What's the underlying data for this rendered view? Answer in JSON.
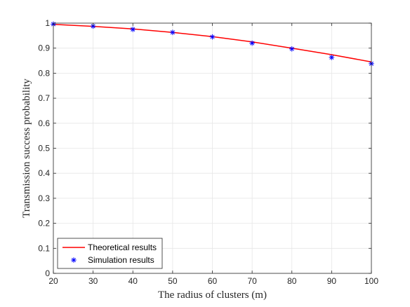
{
  "chart_data": {
    "type": "line",
    "xlabel": "The radius of clusters (m)",
    "ylabel": "Transmission success probability",
    "xlim": [
      20,
      100
    ],
    "ylim": [
      0,
      1
    ],
    "xticks": [
      "20",
      "30",
      "40",
      "50",
      "60",
      "70",
      "80",
      "90",
      "100"
    ],
    "yticks": [
      "0",
      "0.1",
      "0.2",
      "0.3",
      "0.4",
      "0.5",
      "0.6",
      "0.7",
      "0.8",
      "0.9",
      "1"
    ],
    "grid": true,
    "legend_position": "bottom-left",
    "series": [
      {
        "name": "Theoretical results",
        "style": "line",
        "color": "#ff0000",
        "x": [
          20,
          30,
          40,
          50,
          60,
          70,
          80,
          90,
          100
        ],
        "y": [
          0.995,
          0.987,
          0.977,
          0.963,
          0.946,
          0.925,
          0.9,
          0.874,
          0.845
        ]
      },
      {
        "name": "Simulation results",
        "style": "marker",
        "marker": "asterisk",
        "color": "#0000ff",
        "x": [
          20,
          30,
          40,
          50,
          60,
          70,
          80,
          90,
          100
        ],
        "y": [
          0.996,
          0.988,
          0.975,
          0.963,
          0.945,
          0.92,
          0.897,
          0.863,
          0.838
        ]
      }
    ]
  }
}
